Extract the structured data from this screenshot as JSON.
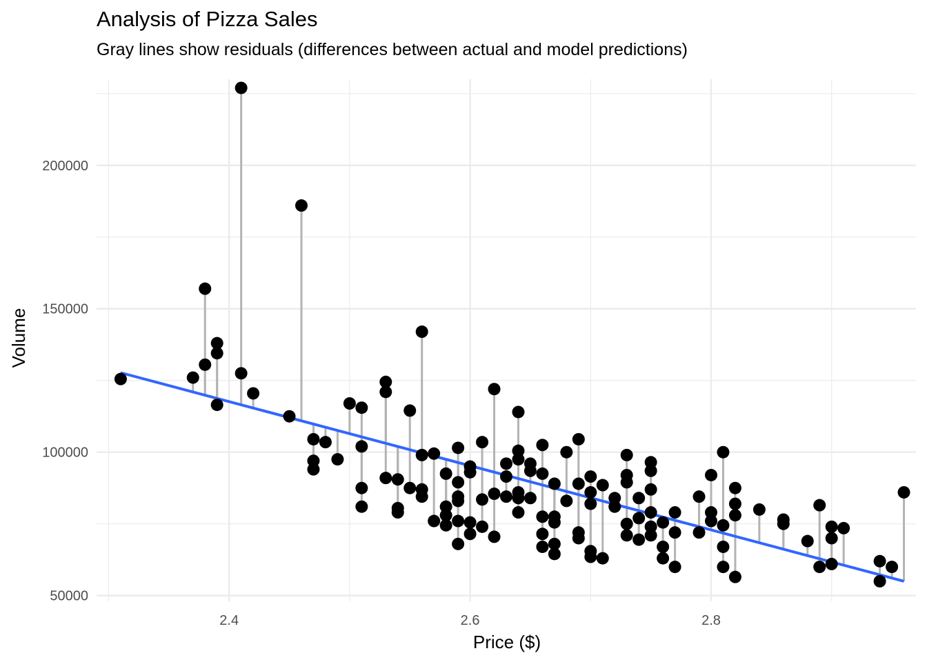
{
  "title": "Analysis of Pizza Sales",
  "subtitle": "Gray lines show residuals (differences between actual and model predictions)",
  "chart_data": {
    "type": "scatter",
    "title": "Analysis of Pizza Sales",
    "subtitle": "Gray lines show residuals (differences between actual and model predictions)",
    "xlabel": "Price ($)",
    "ylabel": "Volume",
    "xlim": [
      2.29,
      2.97
    ],
    "ylim": [
      48000,
      230000
    ],
    "x_ticks": [
      2.4,
      2.6,
      2.8
    ],
    "x_tick_labels": [
      "2.4",
      "2.6",
      "2.8"
    ],
    "y_ticks": [
      50000,
      100000,
      150000,
      200000
    ],
    "y_tick_labels": [
      "50000",
      "100000",
      "150000",
      "200000"
    ],
    "grid": true,
    "legend": "none",
    "colors": {
      "points": "#000000",
      "fit_line": "#3366FF",
      "residuals": "#B3B3B3",
      "grid": "#EBEBEB"
    },
    "fit_line": {
      "x": [
        2.31,
        2.96
      ],
      "y": [
        127700,
        55000
      ]
    },
    "points": [
      [
        2.31,
        125500
      ],
      [
        2.37,
        126000
      ],
      [
        2.38,
        157000
      ],
      [
        2.38,
        130500
      ],
      [
        2.39,
        138000
      ],
      [
        2.39,
        134500
      ],
      [
        2.39,
        116500
      ],
      [
        2.41,
        227000
      ],
      [
        2.41,
        127500
      ],
      [
        2.42,
        120500
      ],
      [
        2.45,
        112500
      ],
      [
        2.46,
        186000
      ],
      [
        2.47,
        104500
      ],
      [
        2.47,
        97000
      ],
      [
        2.47,
        94000
      ],
      [
        2.48,
        103500
      ],
      [
        2.49,
        97500
      ],
      [
        2.5,
        117000
      ],
      [
        2.51,
        115500
      ],
      [
        2.51,
        102000
      ],
      [
        2.51,
        87500
      ],
      [
        2.51,
        81000
      ],
      [
        2.53,
        124500
      ],
      [
        2.53,
        121000
      ],
      [
        2.53,
        91000
      ],
      [
        2.54,
        90500
      ],
      [
        2.54,
        80500
      ],
      [
        2.54,
        79000
      ],
      [
        2.55,
        114500
      ],
      [
        2.55,
        87500
      ],
      [
        2.56,
        142000
      ],
      [
        2.56,
        99000
      ],
      [
        2.56,
        87000
      ],
      [
        2.56,
        84500
      ],
      [
        2.57,
        99500
      ],
      [
        2.57,
        76000
      ],
      [
        2.58,
        92500
      ],
      [
        2.58,
        81000
      ],
      [
        2.58,
        78000
      ],
      [
        2.58,
        74500
      ],
      [
        2.59,
        101500
      ],
      [
        2.59,
        89500
      ],
      [
        2.59,
        84500
      ],
      [
        2.59,
        83000
      ],
      [
        2.59,
        76000
      ],
      [
        2.59,
        68000
      ],
      [
        2.6,
        95000
      ],
      [
        2.6,
        93000
      ],
      [
        2.6,
        75500
      ],
      [
        2.6,
        71500
      ],
      [
        2.61,
        103500
      ],
      [
        2.61,
        83500
      ],
      [
        2.61,
        74000
      ],
      [
        2.62,
        122000
      ],
      [
        2.62,
        85500
      ],
      [
        2.62,
        70500
      ],
      [
        2.63,
        96000
      ],
      [
        2.63,
        91500
      ],
      [
        2.63,
        84500
      ],
      [
        2.64,
        114000
      ],
      [
        2.64,
        100500
      ],
      [
        2.64,
        97500
      ],
      [
        2.64,
        86000
      ],
      [
        2.64,
        84000
      ],
      [
        2.64,
        79000
      ],
      [
        2.65,
        96000
      ],
      [
        2.65,
        93500
      ],
      [
        2.65,
        84000
      ],
      [
        2.66,
        102500
      ],
      [
        2.66,
        92500
      ],
      [
        2.66,
        77500
      ],
      [
        2.66,
        71500
      ],
      [
        2.66,
        67000
      ],
      [
        2.67,
        89000
      ],
      [
        2.67,
        77500
      ],
      [
        2.67,
        75500
      ],
      [
        2.67,
        68000
      ],
      [
        2.67,
        64500
      ],
      [
        2.68,
        100000
      ],
      [
        2.68,
        83000
      ],
      [
        2.69,
        104500
      ],
      [
        2.69,
        89000
      ],
      [
        2.69,
        72000
      ],
      [
        2.69,
        70000
      ],
      [
        2.7,
        91500
      ],
      [
        2.7,
        86000
      ],
      [
        2.7,
        82000
      ],
      [
        2.7,
        65500
      ],
      [
        2.7,
        63500
      ],
      [
        2.71,
        88500
      ],
      [
        2.71,
        63000
      ],
      [
        2.72,
        84000
      ],
      [
        2.72,
        81000
      ],
      [
        2.73,
        99000
      ],
      [
        2.73,
        92000
      ],
      [
        2.73,
        89500
      ],
      [
        2.73,
        75000
      ],
      [
        2.73,
        71000
      ],
      [
        2.74,
        84000
      ],
      [
        2.74,
        77000
      ],
      [
        2.74,
        69500
      ],
      [
        2.75,
        96500
      ],
      [
        2.75,
        93500
      ],
      [
        2.75,
        87000
      ],
      [
        2.75,
        79000
      ],
      [
        2.75,
        74000
      ],
      [
        2.75,
        71000
      ],
      [
        2.76,
        75500
      ],
      [
        2.76,
        67000
      ],
      [
        2.76,
        63000
      ],
      [
        2.77,
        79000
      ],
      [
        2.77,
        72000
      ],
      [
        2.77,
        60000
      ],
      [
        2.79,
        84500
      ],
      [
        2.79,
        72000
      ],
      [
        2.8,
        92000
      ],
      [
        2.8,
        79000
      ],
      [
        2.8,
        76000
      ],
      [
        2.81,
        100000
      ],
      [
        2.81,
        74500
      ],
      [
        2.81,
        67000
      ],
      [
        2.81,
        60000
      ],
      [
        2.82,
        87500
      ],
      [
        2.82,
        82000
      ],
      [
        2.82,
        78000
      ],
      [
        2.82,
        56500
      ],
      [
        2.84,
        80000
      ],
      [
        2.86,
        76500
      ],
      [
        2.86,
        75000
      ],
      [
        2.88,
        69000
      ],
      [
        2.89,
        81500
      ],
      [
        2.89,
        60000
      ],
      [
        2.9,
        74000
      ],
      [
        2.9,
        70000
      ],
      [
        2.9,
        61000
      ],
      [
        2.91,
        73500
      ],
      [
        2.94,
        62000
      ],
      [
        2.94,
        55000
      ],
      [
        2.95,
        60000
      ],
      [
        2.96,
        86000
      ]
    ]
  }
}
